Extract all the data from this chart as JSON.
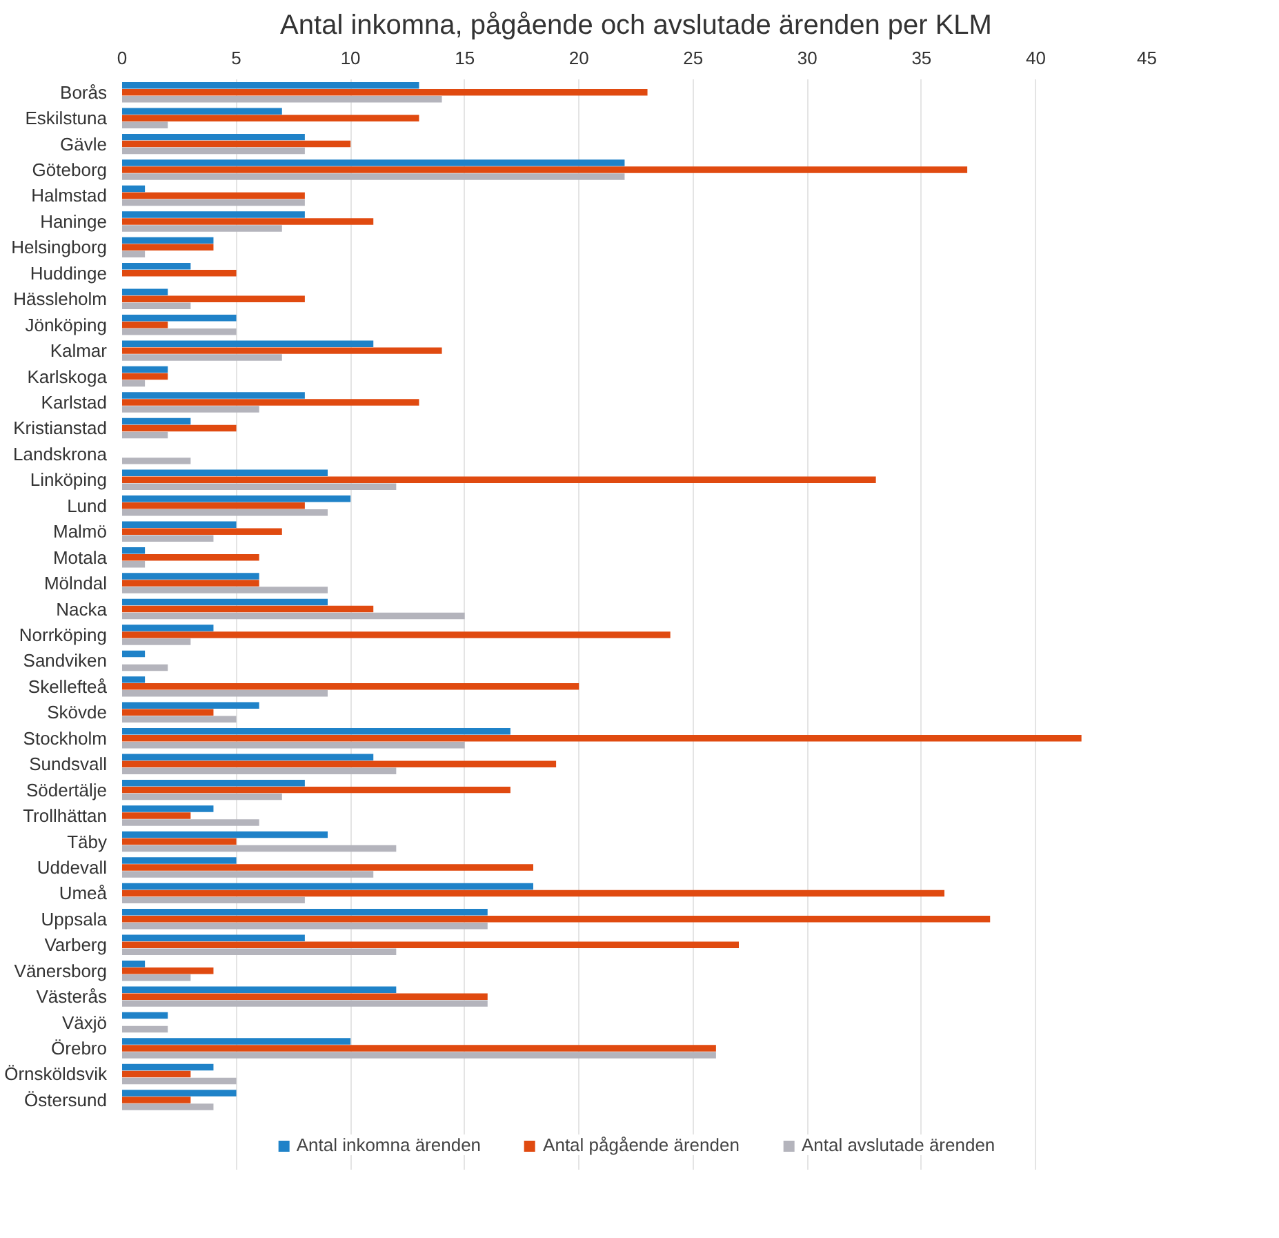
{
  "chart_data": {
    "type": "bar",
    "orientation": "horizontal",
    "title": "Antal inkomna, pågående och avslutade ärenden per KLM",
    "categories": [
      "Borås",
      "Eskilstuna",
      "Gävle",
      "Göteborg",
      "Halmstad",
      "Haninge",
      "Helsingborg",
      "Huddinge",
      "Hässleholm",
      "Jönköping",
      "Kalmar",
      "Karlskoga",
      "Karlstad",
      "Kristianstad",
      "Landskrona",
      "Linköping",
      "Lund",
      "Malmö",
      "Motala",
      "Mölndal",
      "Nacka",
      "Norrköping",
      "Sandviken",
      "Skellefteå",
      "Skövde",
      "Stockholm",
      "Sundsvall",
      "Södertälje",
      "Trollhättan",
      "Täby",
      "Uddevall",
      "Umeå",
      "Uppsala",
      "Varberg",
      "Vänersborg",
      "Västerås",
      "Växjö",
      "Örebro",
      "Örnsköldsvik",
      "Östersund"
    ],
    "series": [
      {
        "name": "Antal inkomna ärenden",
        "color": "#1f82c8",
        "values": [
          13,
          7,
          8,
          22,
          1,
          8,
          4,
          3,
          2,
          5,
          11,
          2,
          8,
          3,
          0,
          9,
          10,
          5,
          1,
          6,
          9,
          4,
          1,
          1,
          6,
          17,
          11,
          8,
          4,
          9,
          5,
          18,
          16,
          8,
          1,
          12,
          2,
          10,
          4,
          5
        ]
      },
      {
        "name": "Antal pågående ärenden",
        "color": "#e04a10",
        "values": [
          23,
          13,
          10,
          37,
          8,
          11,
          4,
          5,
          8,
          2,
          14,
          2,
          13,
          5,
          0,
          33,
          8,
          7,
          6,
          6,
          11,
          24,
          0,
          20,
          4,
          42,
          19,
          17,
          3,
          5,
          18,
          36,
          38,
          27,
          4,
          16,
          0,
          26,
          3,
          3
        ]
      },
      {
        "name": "Antal avslutade ärenden",
        "color": "#b4b4bc",
        "values": [
          14,
          2,
          8,
          22,
          8,
          7,
          1,
          0,
          3,
          5,
          7,
          1,
          6,
          2,
          3,
          12,
          9,
          4,
          1,
          9,
          15,
          3,
          2,
          9,
          5,
          15,
          12,
          7,
          6,
          12,
          11,
          8,
          16,
          12,
          3,
          16,
          2,
          26,
          5,
          4
        ]
      }
    ],
    "xlim": [
      0,
      45
    ],
    "xticks": [
      0,
      5,
      10,
      15,
      20,
      25,
      30,
      35,
      40,
      45
    ],
    "grid": "x",
    "legend": "bottom"
  }
}
